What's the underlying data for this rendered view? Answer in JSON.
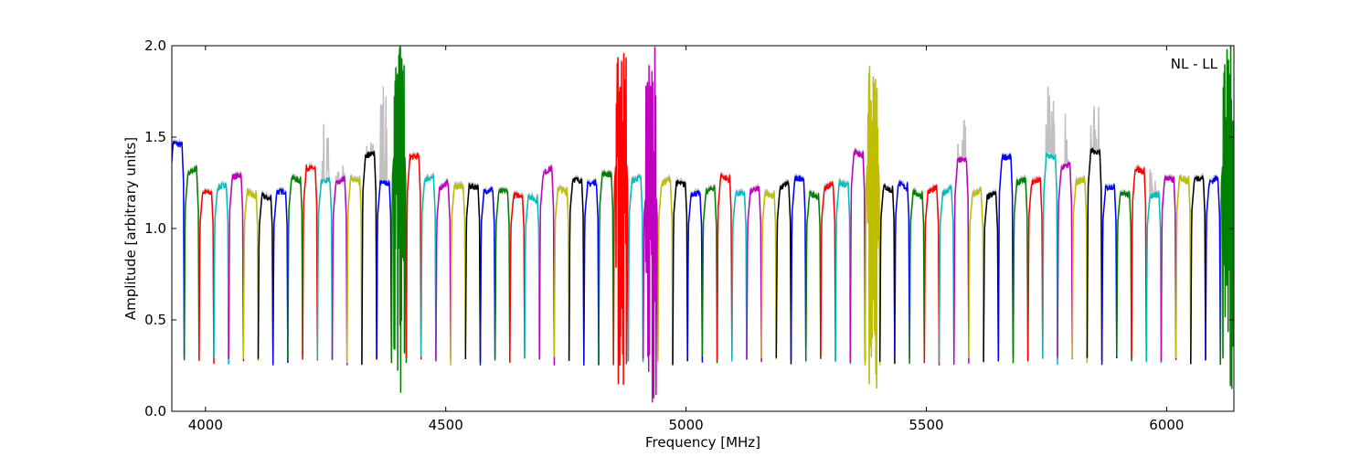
{
  "chart_data": {
    "type": "line",
    "title": "",
    "annotation": "NL - LL",
    "xlabel": "Frequency [MHz]",
    "ylabel": "Amplitude [arbitrary units]",
    "xlim": [
      3930,
      6140
    ],
    "ylim": [
      0.0,
      2.0
    ],
    "xticks": [
      4000,
      4500,
      5000,
      5500,
      6000
    ],
    "xtick_labels": [
      "4000",
      "4500",
      "5000",
      "5500",
      "6000"
    ],
    "yticks": [
      0.0,
      0.5,
      1.0,
      1.5,
      2.0
    ],
    "ytick_labels": [
      "0.0",
      "0.5",
      "1.0",
      "1.5",
      "2.0"
    ],
    "grid": false,
    "colors": {
      "b": "#0000ff",
      "g": "#008000",
      "r": "#ff0000",
      "c": "#00bfbf",
      "m": "#bf00bf",
      "y": "#bfbf00",
      "k": "#000000",
      "background_trace": "#c0c0c0"
    },
    "color_cycle": [
      "b",
      "g",
      "r",
      "c",
      "m",
      "y",
      "k"
    ],
    "segment_start_mhz": 3925,
    "segment_width_mhz": 30.8,
    "segment_floor": 0.28,
    "segments": [
      {
        "level": 1.47
      },
      {
        "level": 1.3
      },
      {
        "level": 1.2
      },
      {
        "level": 1.22
      },
      {
        "level": 1.28
      },
      {
        "level": 1.2
      },
      {
        "level": 1.18
      },
      {
        "level": 1.2
      },
      {
        "level": 1.28
      },
      {
        "level": 1.33
      },
      {
        "level": 1.25,
        "gray_peak": 1.6
      },
      {
        "level": 1.25,
        "gray_peak": 1.35
      },
      {
        "level": 1.28
      },
      {
        "level": 1.4,
        "gray_peak": 1.48
      },
      {
        "level": 1.25,
        "gray_peak": 2.0
      },
      {
        "level": 1.5,
        "noisy": true,
        "max": 2.0,
        "min": 0.05
      },
      {
        "level": 1.39
      },
      {
        "level": 1.27
      },
      {
        "level": 1.22
      },
      {
        "level": 1.23
      },
      {
        "level": 1.23
      },
      {
        "level": 1.2
      },
      {
        "level": 1.2
      },
      {
        "level": 1.18
      },
      {
        "level": 1.18
      },
      {
        "level": 1.3
      },
      {
        "level": 1.22
      },
      {
        "level": 1.27
      },
      {
        "level": 1.24
      },
      {
        "level": 1.3
      },
      {
        "level": 1.45,
        "noisy": true,
        "max": 2.0,
        "min": 0.08
      },
      {
        "level": 1.26
      },
      {
        "level": 1.25,
        "noisy": true,
        "max": 2.0,
        "min": 0.05
      },
      {
        "level": 1.24
      },
      {
        "level": 1.25
      },
      {
        "level": 1.19
      },
      {
        "level": 1.2
      },
      {
        "level": 1.29
      },
      {
        "level": 1.19
      },
      {
        "level": 1.2
      },
      {
        "level": 1.2
      },
      {
        "level": 1.22
      },
      {
        "level": 1.27
      },
      {
        "level": 1.19
      },
      {
        "level": 1.22
      },
      {
        "level": 1.25
      },
      {
        "level": 1.42
      },
      {
        "level": 1.45,
        "noisy": true,
        "max": 2.0,
        "min": 0.08
      },
      {
        "level": 1.23
      },
      {
        "level": 1.25
      },
      {
        "level": 1.2
      },
      {
        "level": 1.2
      },
      {
        "level": 1.19
      },
      {
        "level": 1.37,
        "gray_peak": 1.7
      },
      {
        "level": 1.18
      },
      {
        "level": 1.17
      },
      {
        "level": 1.39
      },
      {
        "level": 1.25
      },
      {
        "level": 1.25
      },
      {
        "level": 1.4,
        "gray_peak": 1.8
      },
      {
        "level": 1.33,
        "gray_peak": 1.8
      },
      {
        "level": 1.25
      },
      {
        "level": 1.43,
        "gray_peak": 1.7
      },
      {
        "level": 1.22
      },
      {
        "level": 1.2
      },
      {
        "level": 1.33
      },
      {
        "level": 1.18,
        "gray_peak": 1.35
      },
      {
        "level": 1.28
      },
      {
        "level": 1.28
      },
      {
        "level": 1.27
      },
      {
        "level": 1.25
      },
      {
        "level": 1.45,
        "noisy": true,
        "max": 2.0,
        "min": 0.03
      }
    ]
  }
}
